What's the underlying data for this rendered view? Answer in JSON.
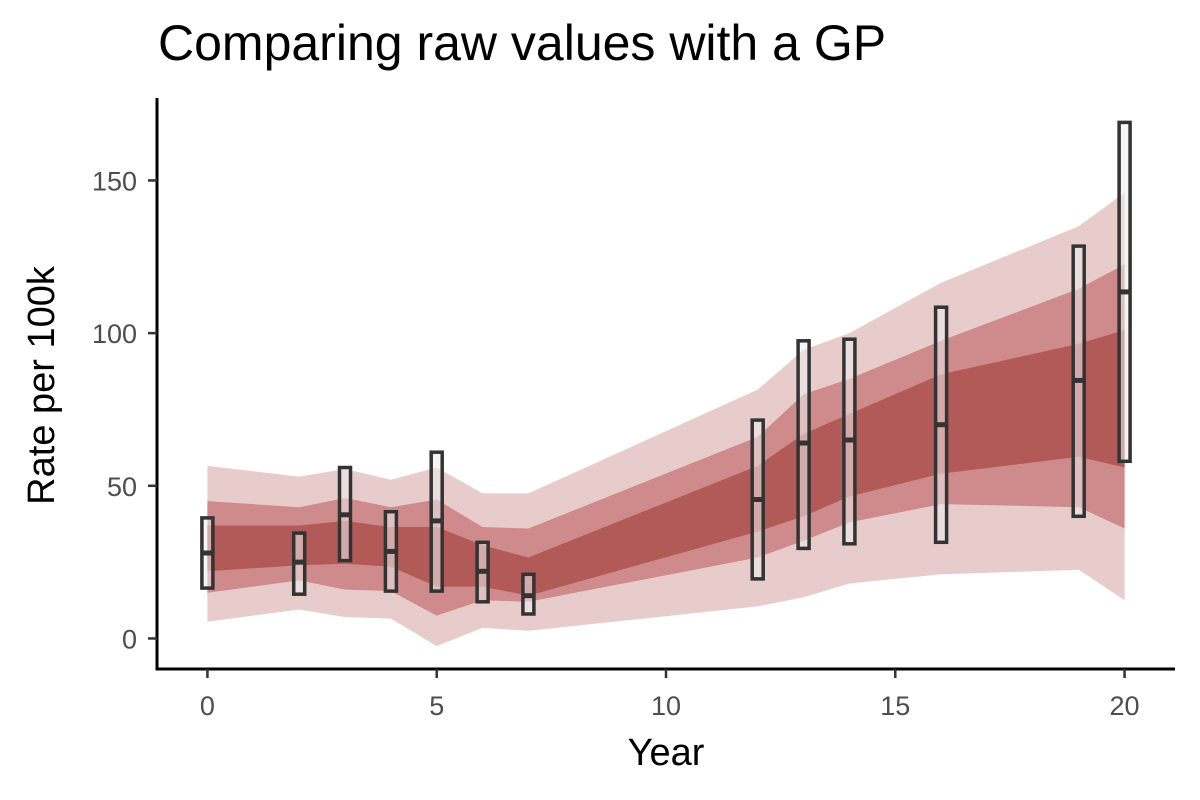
{
  "chart_data": {
    "type": "area",
    "title": "Comparing raw values with a GP",
    "xlabel": "Year",
    "ylabel": "Rate per 100k",
    "xlim": [
      -1.1,
      21.1
    ],
    "ylim": [
      -10,
      177
    ],
    "x_ticks": [
      0,
      5,
      10,
      15,
      20
    ],
    "y_ticks": [
      0,
      50,
      100,
      150
    ],
    "grid": false,
    "legend": "none",
    "colors": {
      "band_outer": "#e8cccc",
      "band_middle": "#cf8b8b",
      "band_inner": "#b25a58",
      "box_stroke": "#333333",
      "box_fill": "#ececec"
    },
    "gp_bands": {
      "x": [
        0,
        2,
        3,
        4,
        5,
        6,
        7,
        12,
        13,
        14,
        16,
        19,
        20
      ],
      "outer_low": [
        5.5,
        9.5,
        7,
        6.5,
        -2.5,
        3.5,
        2.5,
        10.5,
        13.5,
        18,
        21,
        22.5,
        12.5
      ],
      "outer_high": [
        56.5,
        53,
        55.5,
        52,
        56,
        47.5,
        47.5,
        81.5,
        94.5,
        100,
        116.5,
        135,
        146
      ],
      "middle_low": [
        15,
        19,
        16,
        15.5,
        7.5,
        12.5,
        12,
        26.5,
        32,
        38,
        44,
        43,
        36
      ],
      "middle_high": [
        45,
        43,
        46,
        43,
        45.5,
        36.5,
        36,
        66,
        80,
        85,
        97.5,
        114.5,
        122.5
      ],
      "inner_low": [
        22,
        24,
        24.5,
        23.5,
        17,
        17,
        14,
        35,
        40,
        46.5,
        54,
        59.5,
        56
      ],
      "inner_high": [
        37,
        37,
        38.5,
        36.5,
        36.5,
        30.5,
        26.5,
        56.5,
        67,
        73.5,
        86.5,
        96.5,
        101
      ]
    },
    "raw_values": [
      {
        "x": 0,
        "low": 16.5,
        "high": 39.5,
        "mid": 28
      },
      {
        "x": 2,
        "low": 14.5,
        "high": 34.5,
        "mid": 25
      },
      {
        "x": 3,
        "low": 25.5,
        "high": 56,
        "mid": 40.5
      },
      {
        "x": 4,
        "low": 15.5,
        "high": 41.5,
        "mid": 28.5
      },
      {
        "x": 5,
        "low": 15.5,
        "high": 61,
        "mid": 38.5
      },
      {
        "x": 6,
        "low": 12,
        "high": 31.5,
        "mid": 22
      },
      {
        "x": 7,
        "low": 8,
        "high": 21,
        "mid": 14
      },
      {
        "x": 12,
        "low": 19.5,
        "high": 71.5,
        "mid": 45.5
      },
      {
        "x": 13,
        "low": 29.5,
        "high": 97.5,
        "mid": 64
      },
      {
        "x": 14,
        "low": 31,
        "high": 98,
        "mid": 65
      },
      {
        "x": 16,
        "low": 31.5,
        "high": 108.5,
        "mid": 70
      },
      {
        "x": 19,
        "low": 40,
        "high": 128.5,
        "mid": 84.5
      },
      {
        "x": 20,
        "low": 58,
        "high": 169,
        "mid": 113.5
      }
    ]
  }
}
